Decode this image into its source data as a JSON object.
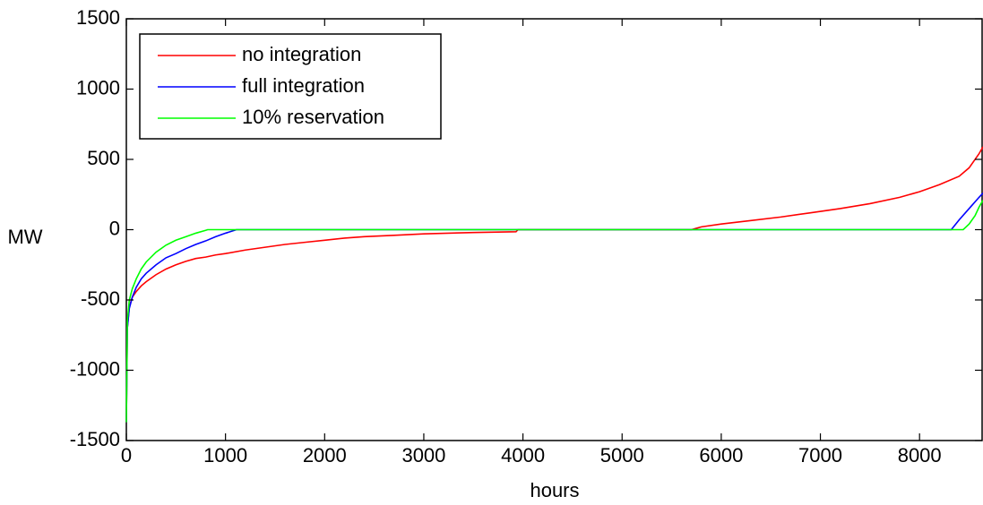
{
  "chart_data": {
    "type": "line",
    "title": "",
    "xlabel": "hours",
    "ylabel": "MW",
    "xlim": [
      0,
      8640
    ],
    "ylim": [
      -1500,
      1500
    ],
    "xticks": [
      0,
      1000,
      2000,
      3000,
      4000,
      5000,
      6000,
      7000,
      8000
    ],
    "yticks": [
      1500,
      1000,
      500,
      0,
      -500,
      -1000,
      -1500
    ],
    "xtick_labels": [
      "0",
      "1000",
      "2000",
      "3000",
      "4000",
      "5000",
      "6000",
      "7000",
      "8000"
    ],
    "ytick_labels": [
      "1500",
      "1000",
      "500",
      "0",
      "-500",
      "-1000",
      "-1500"
    ],
    "grid": false,
    "legend_position": "top-left",
    "series": [
      {
        "name": "no integration",
        "color": "#ff0000",
        "x": [
          0,
          10,
          30,
          60,
          100,
          150,
          200,
          300,
          400,
          500,
          600,
          700,
          800,
          900,
          1000,
          1200,
          1400,
          1600,
          1800,
          2000,
          2200,
          2400,
          2700,
          3000,
          3500,
          3930,
          3950,
          5700,
          5750,
          5800,
          6000,
          6300,
          6600,
          6900,
          7200,
          7500,
          7800,
          8000,
          8200,
          8400,
          8500,
          8600,
          8640
        ],
        "y": [
          -1370,
          -700,
          -550,
          -480,
          -440,
          -400,
          -370,
          -320,
          -280,
          -250,
          -225,
          -205,
          -195,
          -180,
          -170,
          -145,
          -125,
          -105,
          -90,
          -75,
          -60,
          -50,
          -40,
          -30,
          -20,
          -15,
          0,
          0,
          10,
          20,
          40,
          65,
          90,
          120,
          150,
          185,
          230,
          270,
          320,
          380,
          440,
          540,
          590
        ]
      },
      {
        "name": "full integration",
        "color": "#0000ff",
        "x": [
          0,
          10,
          30,
          60,
          100,
          150,
          200,
          300,
          400,
          500,
          600,
          700,
          800,
          900,
          1000,
          1090,
          1110,
          8320,
          8400,
          8500,
          8600,
          8640
        ],
        "y": [
          -1370,
          -700,
          -560,
          -480,
          -410,
          -350,
          -310,
          -250,
          -200,
          -170,
          -135,
          -105,
          -80,
          -50,
          -25,
          -5,
          0,
          0,
          70,
          150,
          230,
          260
        ]
      },
      {
        "name": "10% reservation",
        "color": "#00ff00",
        "x": [
          0,
          10,
          30,
          60,
          100,
          150,
          200,
          300,
          400,
          500,
          600,
          700,
          800,
          820,
          8440,
          8500,
          8560,
          8600,
          8640
        ],
        "y": [
          -1370,
          -650,
          -500,
          -420,
          -350,
          -280,
          -230,
          -160,
          -110,
          -75,
          -50,
          -25,
          -5,
          0,
          0,
          40,
          100,
          160,
          210
        ]
      }
    ]
  }
}
